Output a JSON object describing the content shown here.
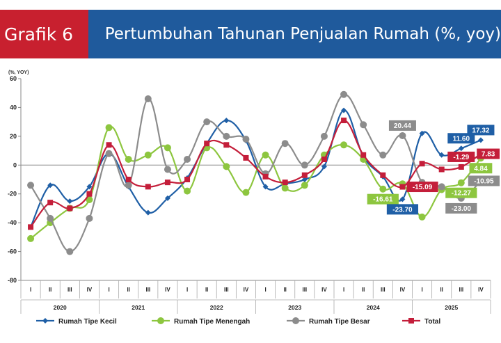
{
  "header": {
    "number": "Grafik 6",
    "title": "Pertumbuhan Tahunan Penjualan Rumah (%, yoy)"
  },
  "colors": {
    "header_red": "#c8202f",
    "header_blue": "#1f5a9c",
    "kecil": "#1f5fa6",
    "menengah": "#8dc63f",
    "besar": "#8c8c8c",
    "total": "#c41e3a"
  },
  "chart_data": {
    "type": "line",
    "ylabel": "(%, YOY)",
    "ylim": [
      -80,
      60
    ],
    "yticks": [
      60,
      40,
      20,
      0,
      -20,
      -40,
      -60,
      -80
    ],
    "quarters": [
      "I",
      "II",
      "III",
      "IV",
      "I",
      "II",
      "III",
      "IV",
      "I",
      "II",
      "III",
      "IV",
      "I",
      "II",
      "III",
      "IV",
      "I",
      "II",
      "III",
      "IV",
      "I",
      "II",
      "III",
      "IV"
    ],
    "years": [
      "2020",
      "2021",
      "2022",
      "2023",
      "2024",
      "2025"
    ],
    "grid": false,
    "legend_position": "bottom",
    "series": [
      {
        "name": "Rumah Tipe Kecil",
        "key": "kecil",
        "marker": "diamond",
        "values": [
          -43,
          -14,
          -25,
          -15,
          8,
          -15,
          -33,
          -23,
          -9,
          15,
          31,
          17,
          -15,
          -13,
          -10,
          -1,
          38,
          6,
          -8,
          -23.7,
          22,
          7,
          11.6,
          17.32
        ]
      },
      {
        "name": "Rumah Tipe Menengah",
        "key": "menengah",
        "marker": "circle",
        "values": [
          -51,
          -40,
          -30,
          -24,
          26,
          4,
          7,
          12,
          -18,
          12,
          -1,
          -19,
          7,
          -16,
          -14,
          7,
          14,
          4,
          -16.61,
          -13,
          -36,
          -17,
          -12.27,
          4.84
        ]
      },
      {
        "name": "Rumah Tipe Besar",
        "key": "besar",
        "marker": "circle",
        "values": [
          -14,
          -37,
          -60,
          -37,
          8,
          -14,
          46,
          -3,
          4,
          30,
          20,
          18,
          -6,
          15,
          0,
          20,
          49,
          28,
          7,
          20.44,
          -12,
          -15,
          -23.0,
          -10.95
        ]
      },
      {
        "name": "Total",
        "key": "total",
        "marker": "square",
        "values": [
          -43,
          -26,
          -30,
          -20,
          14,
          -10,
          -15,
          -12,
          -10,
          15,
          14,
          5,
          -8,
          -12,
          -7,
          4,
          31,
          7,
          -7,
          -15.09,
          1,
          -3,
          -1.29,
          7.83
        ]
      }
    ],
    "annotations": [
      {
        "text": "20.44",
        "series": "besar",
        "index": 19,
        "pos": "above"
      },
      {
        "text": "-15.09",
        "series": "total",
        "index": 19,
        "pos": "right"
      },
      {
        "text": "-16.61",
        "series": "menengah",
        "index": 18,
        "pos": "below"
      },
      {
        "text": "-23.70",
        "series": "kecil",
        "index": 19,
        "pos": "below"
      },
      {
        "text": "11.60",
        "series": "kecil",
        "index": 22,
        "pos": "above"
      },
      {
        "text": "17.32",
        "series": "kecil",
        "index": 23,
        "pos": "above"
      },
      {
        "text": "-1.29",
        "series": "total",
        "index": 22,
        "pos": "above"
      },
      {
        "text": "7.83",
        "series": "total",
        "index": 23,
        "pos": "right"
      },
      {
        "text": "4.84",
        "series": "menengah",
        "index": 23,
        "pos": "below"
      },
      {
        "text": "-12.27",
        "series": "menengah",
        "index": 22,
        "pos": "below"
      },
      {
        "text": "-10.95",
        "series": "besar",
        "index": 23,
        "pos": "right"
      },
      {
        "text": "-23.00",
        "series": "besar",
        "index": 22,
        "pos": "below"
      }
    ]
  }
}
